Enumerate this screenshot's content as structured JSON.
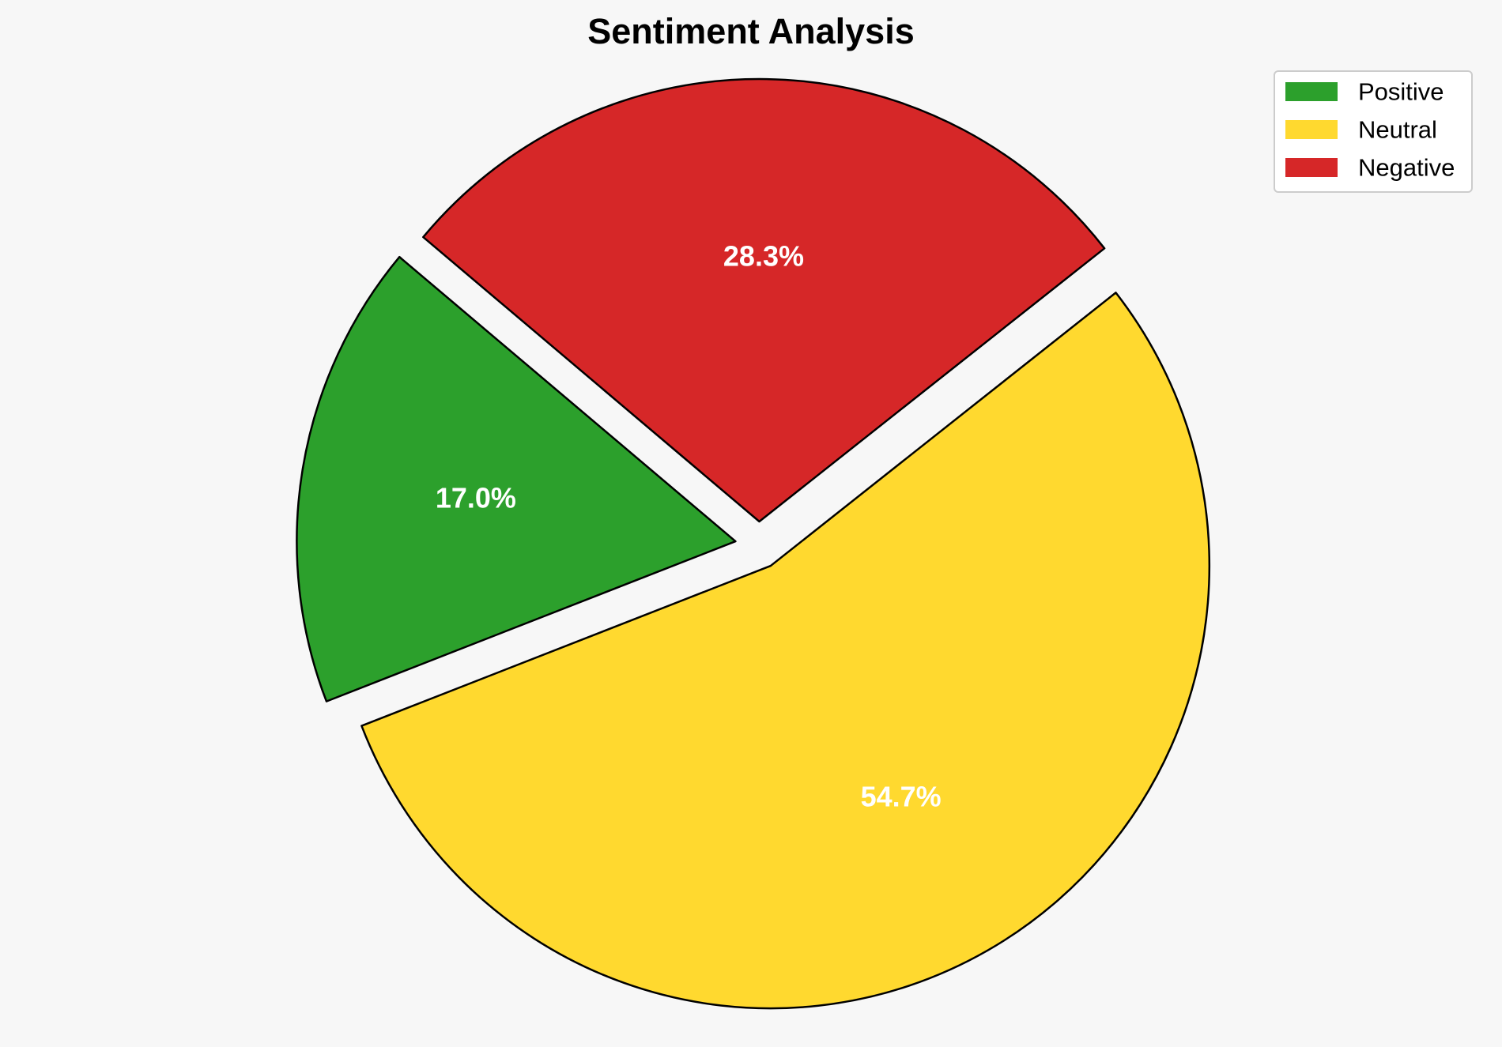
{
  "chart_data": {
    "type": "pie",
    "title": "Sentiment Analysis",
    "start_angle_deg": 140,
    "direction": "counterclockwise",
    "legend_position": "top-right",
    "slices": [
      {
        "label": "Positive",
        "value": 17.0,
        "display": "17.0%",
        "color": "#2ca02c",
        "exploded": true
      },
      {
        "label": "Neutral",
        "value": 54.7,
        "display": "54.7%",
        "color": "#ffd92f",
        "exploded": true
      },
      {
        "label": "Negative",
        "value": 28.3,
        "display": "28.3%",
        "color": "#d62728",
        "exploded": true
      }
    ]
  }
}
